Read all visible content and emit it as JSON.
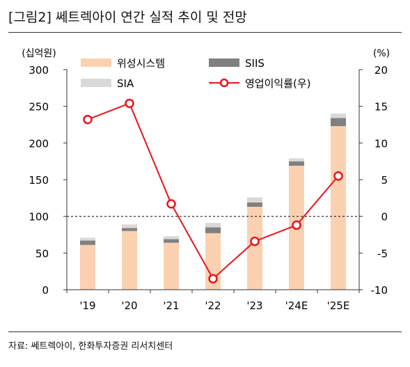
{
  "figure_title": "[그림2]    쎄트렉아이 연간 실적 추이 및 전망",
  "source": "자료: 쎄트렉아이, 한화투자증권 리서치센터",
  "colors": {
    "satellite_system": "#fbd1b2",
    "siis": "#808080",
    "sia": "#d9d9d9",
    "margin_line": "#e8141c",
    "axis": "#333333"
  },
  "chart_data": {
    "type": "bar",
    "stacked": true,
    "categories": [
      "'19",
      "'20",
      "'21",
      "'22",
      "'23",
      "'24E",
      "'25E"
    ],
    "series": [
      {
        "name": "위성시스템",
        "type": "bar",
        "axis": "left",
        "color": "#fbd1b2",
        "values": [
          61,
          80,
          64,
          77,
          113,
          169,
          223
        ]
      },
      {
        "name": "SIIS",
        "type": "bar",
        "axis": "left",
        "color": "#808080",
        "values": [
          6,
          4,
          5,
          8,
          6,
          6,
          11
        ]
      },
      {
        "name": "SIA",
        "type": "bar",
        "axis": "left",
        "color": "#d9d9d9",
        "values": [
          4,
          5,
          4,
          6,
          7,
          4,
          6
        ]
      },
      {
        "name": "영업이익률(우)",
        "type": "line",
        "axis": "right",
        "color": "#e8141c",
        "values": [
          13.2,
          15.4,
          1.7,
          -8.5,
          -3.4,
          -1.2,
          5.5
        ]
      }
    ],
    "y_left": {
      "unit_label": "(십억원)",
      "ylim": [
        0,
        300
      ],
      "ticks": [
        0,
        50,
        100,
        150,
        200,
        250,
        300
      ]
    },
    "y_right": {
      "unit_label": "(%)",
      "ylim": [
        -10,
        20
      ],
      "ticks": [
        -10,
        -5,
        0,
        5,
        10,
        15,
        20
      ]
    },
    "reference_line": {
      "axis": "right",
      "value": 0,
      "style": "dashed"
    },
    "legend": {
      "placement": "top",
      "items": [
        "위성시스템",
        "SIIS",
        "SIA",
        "영업이익률(우)"
      ]
    },
    "grid": false
  }
}
